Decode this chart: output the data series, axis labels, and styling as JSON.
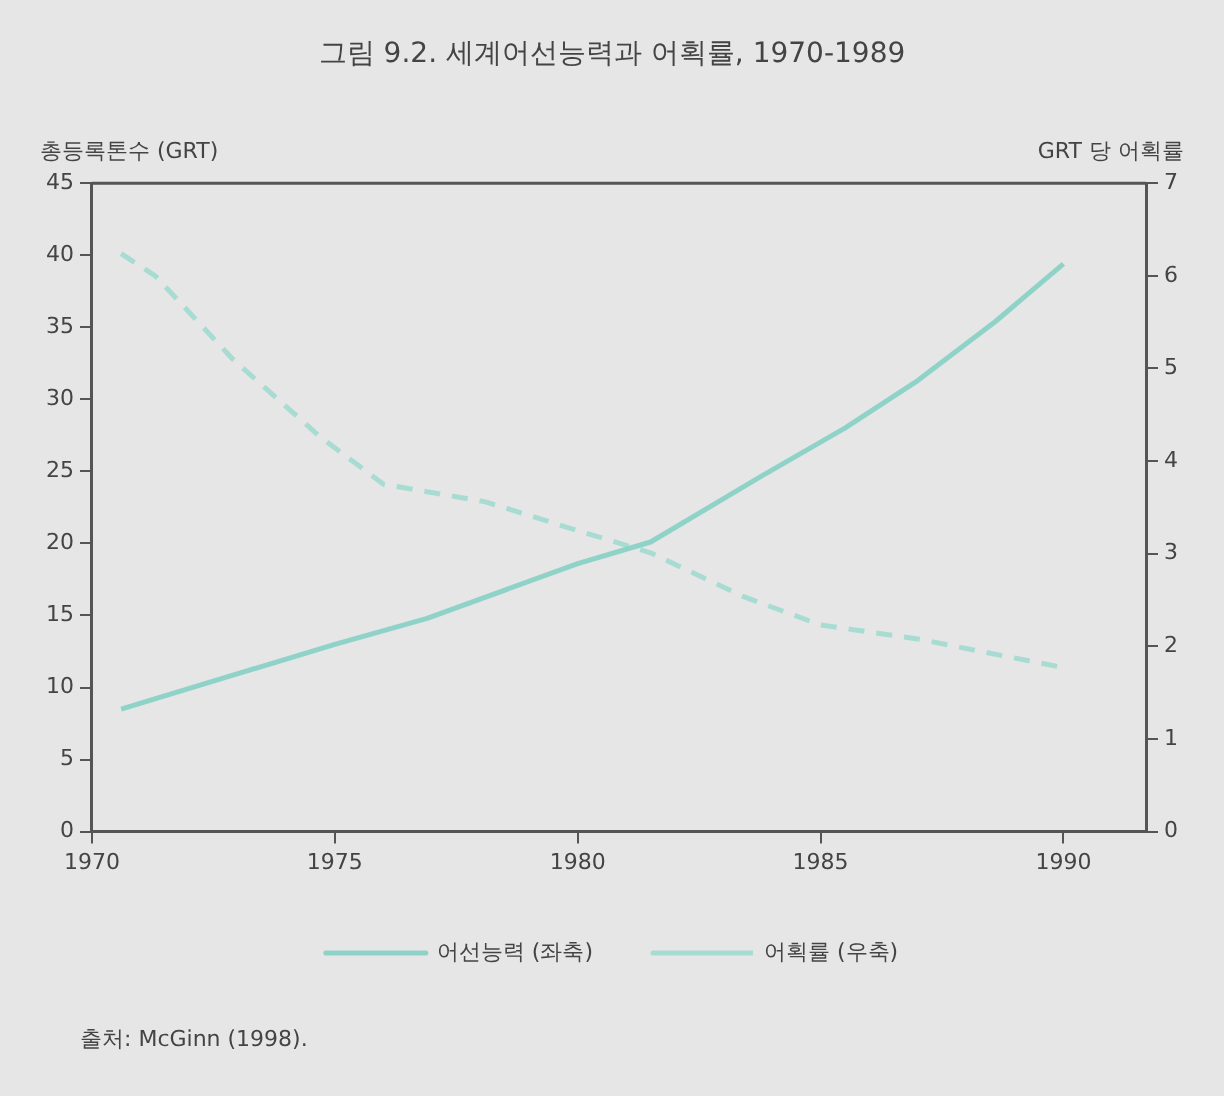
{
  "chart_data": {
    "type": "line",
    "title": "그림 9.2. 세계어선능력과 어획률, 1970-1989",
    "ylabel": "총등록톤수 (GRT)",
    "y2label": "GRT 당 어획률",
    "annotations": [
      "출처: McGinn (1998)."
    ],
    "series": [
      {
        "name": "어선능력 (좌축)",
        "color": "#8fd3c8",
        "line_style": "solid",
        "x": [
          1970.6,
          1975,
          1976.9,
          1980,
          1981.5,
          1983.8,
          1985.5,
          1987,
          1988.6,
          1990
        ],
        "values": [
          8.5,
          13.0,
          14.8,
          18.6,
          20.1,
          24.7,
          28.0,
          31.3,
          35.4,
          39.4
        ]
      },
      {
        "name": "어획률 (우축)",
        "color": "#a8dcd3",
        "line_style": "dashed",
        "axis": "y2",
        "x": [
          1970.6,
          1971.3,
          1972.9,
          1974.7,
          1976,
          1978.1,
          1980,
          1981.5,
          1983.4,
          1985,
          1987,
          1990
        ],
        "values": [
          6.24,
          6.0,
          5.1,
          4.26,
          3.75,
          3.56,
          3.25,
          3.01,
          2.54,
          2.23,
          2.08,
          1.77
        ]
      }
    ],
    "xlim": [
      1970,
      1991.7
    ],
    "xticks": [
      1970,
      1975,
      1980,
      1985,
      1990
    ],
    "ylim": [
      0,
      45
    ],
    "yticks": [
      0,
      5,
      10,
      15,
      20,
      25,
      30,
      35,
      40,
      45
    ],
    "y2lim": [
      0,
      7
    ],
    "y2ticks": [
      0,
      1,
      2,
      3,
      4,
      5,
      6,
      7
    ],
    "grid": false,
    "legend": "bottom",
    "marker": "none"
  }
}
